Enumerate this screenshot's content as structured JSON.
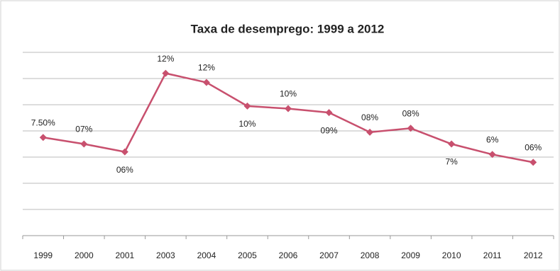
{
  "chart_data": {
    "type": "line",
    "title": "Taxa de desemprego: 1999 a 2012",
    "categories": [
      "1999",
      "2000",
      "2001",
      "2003",
      "2004",
      "2005",
      "2006",
      "2007",
      "2008",
      "2009",
      "2010",
      "2011",
      "2012"
    ],
    "series": [
      {
        "name": "Taxa de desemprego",
        "color": "#c8506e",
        "values": [
          7.5,
          7,
          6.4,
          12.4,
          11.7,
          9.9,
          9.7,
          9.4,
          7.9,
          8.2,
          7,
          6.2,
          5.6
        ],
        "value_labels": [
          "7.50%",
          "07%",
          "06%",
          "12%",
          "12%",
          "10%",
          "10%",
          "09%",
          "08%",
          "08%",
          "7%",
          "6%",
          "06%"
        ]
      }
    ],
    "ylim": [
      0,
      14
    ],
    "yticks": [
      0,
      2,
      4,
      6,
      8,
      10,
      12,
      14
    ],
    "grid": true
  }
}
